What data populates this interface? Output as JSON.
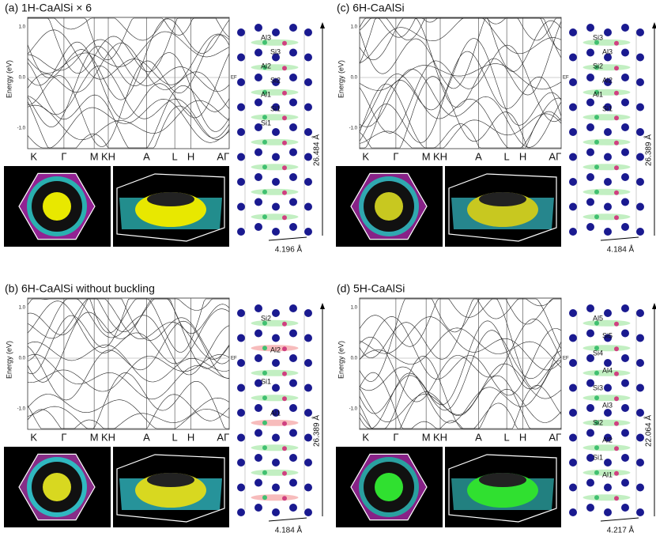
{
  "panels": [
    {
      "title": "(a) 1H-CaAlSi × 6",
      "y_axis_label": "Energy (eV)",
      "yticks": [
        "1.0",
        "0.0",
        "-1.0"
      ],
      "fermi_label": "EF",
      "kpoints": [
        "K",
        "Γ",
        "M",
        "KH",
        "A",
        "L",
        "H",
        "AΓ"
      ],
      "atom_labels": [
        "Al3",
        "Si3",
        "Al2",
        "Si2",
        "Al1",
        "Si1",
        "Si1"
      ],
      "c_length": "26.484 Å",
      "a_length": "4.196 Å"
    },
    {
      "title": "(b) 6H-CaAlSi without buckling",
      "y_axis_label": "Energy (eV)",
      "yticks": [
        "1.0",
        "0.0",
        "-1.0"
      ],
      "fermi_label": "EF",
      "kpoints": [
        "K",
        "Γ",
        "M",
        "KH",
        "A",
        "L",
        "H",
        "AΓ"
      ],
      "atom_labels": [
        "Si2",
        "Al2",
        "Si1",
        "Al1"
      ],
      "c_length": "26.389 Å",
      "a_length": "4.184 Å"
    },
    {
      "title": "(c) 6H-CaAlSi",
      "y_axis_label": "Energy (eV)",
      "yticks": [
        "1.0",
        "0.0",
        "-1.0"
      ],
      "fermi_label": "EF",
      "kpoints": [
        "K",
        "Γ",
        "M",
        "KH",
        "A",
        "L",
        "H",
        "AΓ"
      ],
      "atom_labels": [
        "Si3",
        "Al3",
        "Si2",
        "Al2",
        "Al1",
        "Si1"
      ],
      "c_length": "26.389 Å",
      "a_length": "4.184 Å"
    },
    {
      "title": "(d) 5H-CaAlSi",
      "y_axis_label": "Energy (eV)",
      "yticks": [
        "1.0",
        "0.0",
        "-1.0"
      ],
      "fermi_label": "EF",
      "kpoints": [
        "K",
        "Γ",
        "M",
        "KH",
        "A",
        "L",
        "H",
        "AΓ"
      ],
      "atom_labels": [
        "Al5",
        "Si5",
        "Si4",
        "Al4",
        "Si3",
        "Al3",
        "Si2",
        "Al2",
        "Si1",
        "Al1"
      ],
      "c_length": "22.064 Å",
      "a_length": "4.217 Å"
    }
  ]
}
